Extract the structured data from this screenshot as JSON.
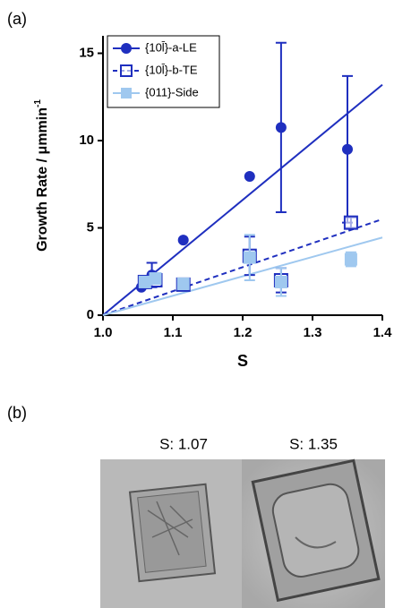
{
  "chart_data": {
    "type": "scatter",
    "panel_label": "(a)",
    "x_label": "S",
    "y_label": {
      "text": "Growth Rate / μmmin",
      "superscript": "-1"
    },
    "xlim": [
      1.0,
      1.4
    ],
    "xticks": [
      {
        "value": 1.0,
        "label": "1.0"
      },
      {
        "value": 1.1,
        "label": "1.1"
      },
      {
        "value": 1.2,
        "label": "1.2"
      },
      {
        "value": 1.3,
        "label": "1.3"
      },
      {
        "value": 1.4,
        "label": "1.4"
      }
    ],
    "ylim": [
      0,
      16
    ],
    "yticks": [
      0,
      5,
      10,
      15
    ],
    "legend": "top-left",
    "series": [
      {
        "name": "{10l̄}-a-LE",
        "color": "#1f2fbf",
        "marker": "circle",
        "line_style": "solid",
        "x": [
          1.055,
          1.07,
          1.115,
          1.21,
          1.255,
          1.35
        ],
        "values": [
          1.6,
          2.3,
          4.3,
          7.95,
          10.75,
          9.5
        ],
        "errors": [
          null,
          0.7,
          null,
          null,
          4.85,
          4.2
        ],
        "fit_x": [
          1.0,
          1.4
        ],
        "fit_values": [
          0,
          13.2
        ]
      },
      {
        "name": "{10l̄}-b-TE",
        "color": "#1f2fbf",
        "marker": "open-square",
        "line_style": "dashed",
        "x": [
          1.06,
          1.075,
          1.115,
          1.21,
          1.255,
          1.355
        ],
        "values": [
          1.9,
          2.0,
          1.75,
          3.4,
          2.0,
          5.3
        ],
        "errors": [
          null,
          null,
          null,
          1.1,
          0.7,
          0.3
        ],
        "fit_x": [
          1.0,
          1.4
        ],
        "fit_values": [
          0,
          5.5
        ]
      },
      {
        "name": "{011}-Side",
        "color": "#9fc8ef",
        "marker": "square",
        "line_style": "solid",
        "x": [
          1.06,
          1.075,
          1.115,
          1.21,
          1.255,
          1.355
        ],
        "values": [
          1.9,
          2.1,
          1.8,
          3.3,
          1.9,
          3.2
        ],
        "errors": [
          null,
          null,
          null,
          1.3,
          0.8,
          0.4
        ],
        "fit_x": [
          1.0,
          1.4
        ],
        "fit_values": [
          0,
          4.45
        ]
      }
    ]
  },
  "images": {
    "panel_label": "(b)",
    "captions": [
      "S: 1.07",
      "S: 1.35"
    ]
  }
}
